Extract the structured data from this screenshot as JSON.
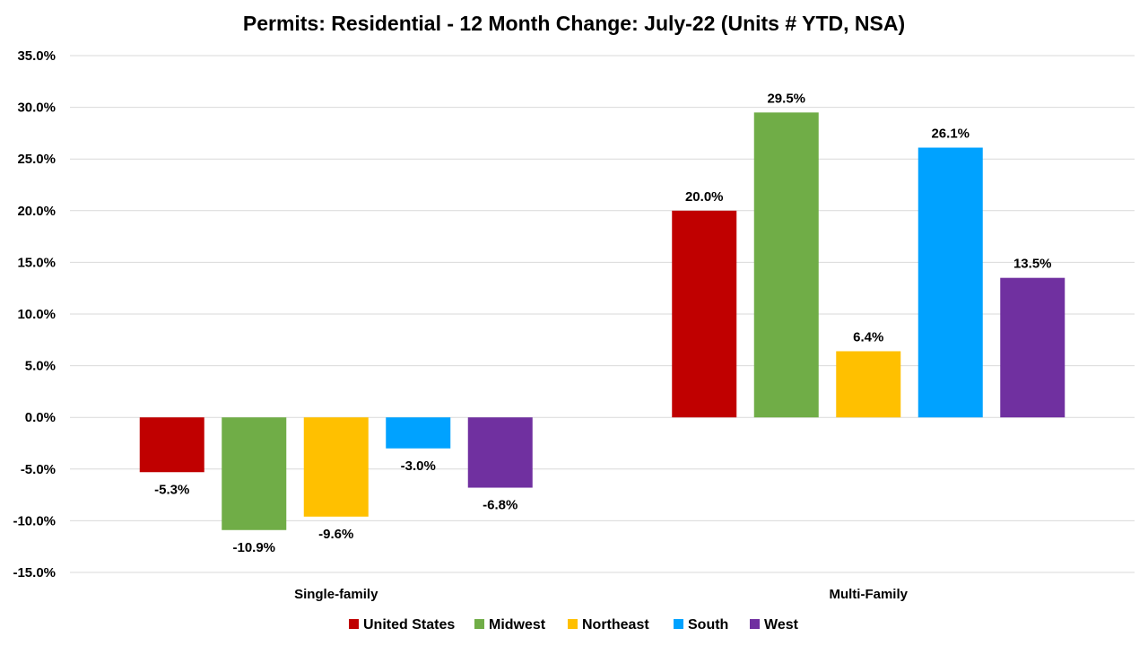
{
  "chart_data": {
    "type": "bar",
    "title": "Permits: Residential - 12 Month Change:  July-22 (Units # YTD, NSA)",
    "categories": [
      "Single-family",
      "Multi-Family"
    ],
    "series": [
      {
        "name": "United States",
        "color": "#C00000",
        "values": [
          -5.3,
          20.0
        ]
      },
      {
        "name": "Midwest",
        "color": "#70AD47",
        "values": [
          -10.9,
          29.5
        ]
      },
      {
        "name": "Northeast",
        "color": "#FFC000",
        "values": [
          -9.6,
          6.4
        ]
      },
      {
        "name": "South",
        "color": "#00A2FF",
        "values": [
          -3.0,
          26.1
        ]
      },
      {
        "name": "West",
        "color": "#7030A0",
        "values": [
          -6.8,
          13.5
        ]
      }
    ],
    "ylim": [
      -15,
      35
    ],
    "y_ticks": [
      35,
      30,
      25,
      20,
      15,
      10,
      5,
      0,
      -5,
      -10,
      -15
    ],
    "y_tick_labels": [
      "35.0%",
      "30.0%",
      "25.0%",
      "20.0%",
      "15.0%",
      "10.0%",
      "5.0%",
      "0.0%",
      "-5.0%",
      "-10.0%",
      "-15.0%"
    ],
    "data_labels": [
      [
        "-5.3%",
        "20.0%"
      ],
      [
        "-10.9%",
        "29.5%"
      ],
      [
        "-9.6%",
        "6.4%"
      ],
      [
        "-3.0%",
        "26.1%"
      ],
      [
        "-6.8%",
        "13.5%"
      ]
    ],
    "xlabel": "",
    "ylabel": "",
    "grid": true,
    "legend_position": "bottom"
  }
}
